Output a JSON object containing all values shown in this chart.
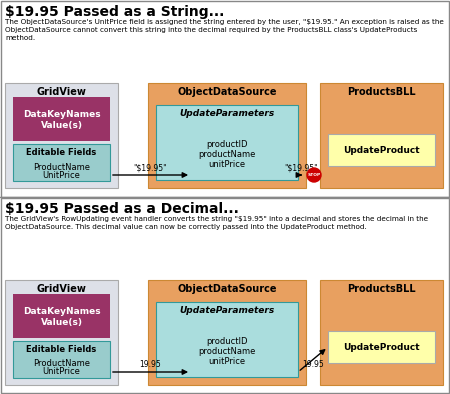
{
  "bg_color": "#ffffff",
  "section1": {
    "title": "$19.95 Passed as a String...",
    "desc_line1": "The ObjectDataSource's UnitPrice field is assigned the string entered by the user, \"$19.95.\" An exception is raised as the",
    "desc_line2": "ObjectDataSource cannot convert this string into the decimal required by the ProductsBLL class's UpdateProducts",
    "desc_line3": "method.",
    "arrow_label1": "\"$19.95\"",
    "arrow_label2": "\"$19.95\"",
    "has_stop": true
  },
  "section2": {
    "title": "$19.95 Passed as a Decimal...",
    "desc_line1": "The GridView's RowUpdating event handler converts the string \"$19.95\" into a decimal and stores the decimal in the",
    "desc_line2": "ObjectDataSource. This decimal value can now be correctly passed into the UpdateProduct method.",
    "desc_line3": "",
    "arrow_label1": "19.95",
    "arrow_label2": "19.95",
    "has_stop": false
  },
  "gridview_bg": "#dde0e8",
  "gridview_border": "#aaaaaa",
  "gridview_title": "GridView",
  "datakey_bg": "#993366",
  "datakey_text_color": "#ffffff",
  "datakey_line1": "DataKeyNames",
  "datakey_line2": "Value(s)",
  "editable_bg": "#99cccc",
  "editable_border": "#339999",
  "editable_title": "Editable Fields",
  "editable_line1": "ProductName",
  "editable_line2": "UnitPrice",
  "ods_bg": "#e8a060",
  "ods_border": "#cc8833",
  "ods_title": "ObjectDataSource",
  "params_bg": "#aadddd",
  "params_border": "#339999",
  "params_title": "UpdateParameters",
  "params_line1": "productID",
  "params_line2": "productName",
  "params_line3": "unitPrice",
  "bll_bg": "#e8a060",
  "bll_border": "#cc8833",
  "bll_title": "ProductsBLL",
  "update_bg": "#ffffaa",
  "update_border": "#aaaaaa",
  "update_text": "UpdateProduct",
  "stop_color": "#cc0000",
  "divider_color": "#888888",
  "text_color": "#000000"
}
